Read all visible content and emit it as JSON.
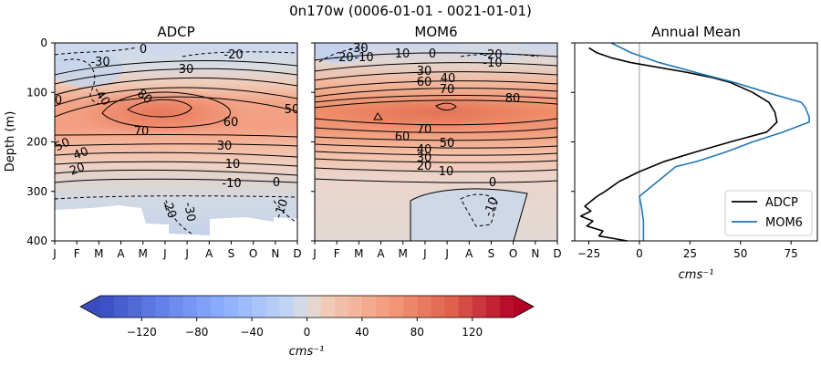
{
  "chart_data": {
    "suptitle": "0n170w (0006-01-01 - 0021-01-01)",
    "panels": [
      {
        "type": "heatmap",
        "title": "ADCP",
        "ylabel": "Depth (m)",
        "ylim": [
          400,
          0
        ],
        "months": [
          "J",
          "F",
          "M",
          "A",
          "M",
          "J",
          "J",
          "A",
          "S",
          "O",
          "N",
          "D"
        ],
        "depth_ticks": [
          0,
          100,
          200,
          300,
          400
        ],
        "contour_labels": [
          "-30",
          "-30",
          "-40",
          "-20",
          "-10",
          "0",
          "0",
          "30",
          "80",
          "70",
          "60",
          "50",
          "50",
          "40",
          "20",
          "30",
          "10",
          "-10",
          "0",
          "-20",
          "-30",
          "-10",
          "0"
        ]
      },
      {
        "type": "heatmap",
        "title": "MOM6",
        "ylim": [
          400,
          0
        ],
        "months": [
          "J",
          "F",
          "M",
          "A",
          "M",
          "J",
          "J",
          "A",
          "S",
          "O",
          "N",
          "D"
        ],
        "contour_labels": [
          "-30",
          "-20",
          "-10",
          "10",
          "0",
          "-20",
          "-10",
          "30",
          "40",
          "60",
          "70",
          "80",
          "60",
          "70",
          "50",
          "40",
          "30",
          "20",
          "10",
          "0",
          "-10"
        ]
      },
      {
        "type": "line",
        "title": "Annual Mean",
        "xlabel": "cms⁻¹",
        "xlim": [
          -32,
          88
        ],
        "ylim": [
          400,
          0
        ],
        "xticks": [
          -25,
          0,
          25,
          50,
          75
        ],
        "series": [
          {
            "name": "ADCP",
            "color": "#000000",
            "depth": [
              10,
              20,
              30,
              40,
              50,
              60,
              70,
              80,
              100,
              120,
              140,
              160,
              180,
              200,
              220,
              240,
              260,
              280,
              300,
              310,
              320,
              330,
              340,
              350,
              360,
              370,
              380,
              390,
              400
            ],
            "velocity": [
              -25,
              -21,
              -14,
              -4,
              10,
              24,
              36,
              45,
              56,
              64,
              67,
              68,
              63,
              45,
              28,
              12,
              0,
              -10,
              -17,
              -21,
              -24,
              -27,
              -24,
              -29,
              -23,
              -26,
              -18,
              -20,
              -6
            ]
          },
          {
            "name": "MOM6",
            "color": "#1f77b4",
            "depth": [
              0,
              20,
              40,
              60,
              80,
              100,
              120,
              130,
              140,
              150,
              160,
              180,
              200,
              220,
              240,
              250,
              270,
              300,
              310,
              330,
              360,
              400
            ],
            "velocity": [
              -14,
              -4,
              10,
              28,
              47,
              63,
              80,
              82,
              83,
              84,
              84,
              71,
              56,
              43,
              28,
              18,
              12,
              3,
              0,
              1,
              2,
              2
            ]
          }
        ],
        "legend": [
          "ADCP",
          "MOM6"
        ]
      }
    ],
    "colorbar": {
      "label": "cms⁻¹",
      "range": [
        -150,
        150
      ],
      "ticks": [
        -120,
        -80,
        -40,
        0,
        40,
        80,
        120
      ]
    }
  }
}
